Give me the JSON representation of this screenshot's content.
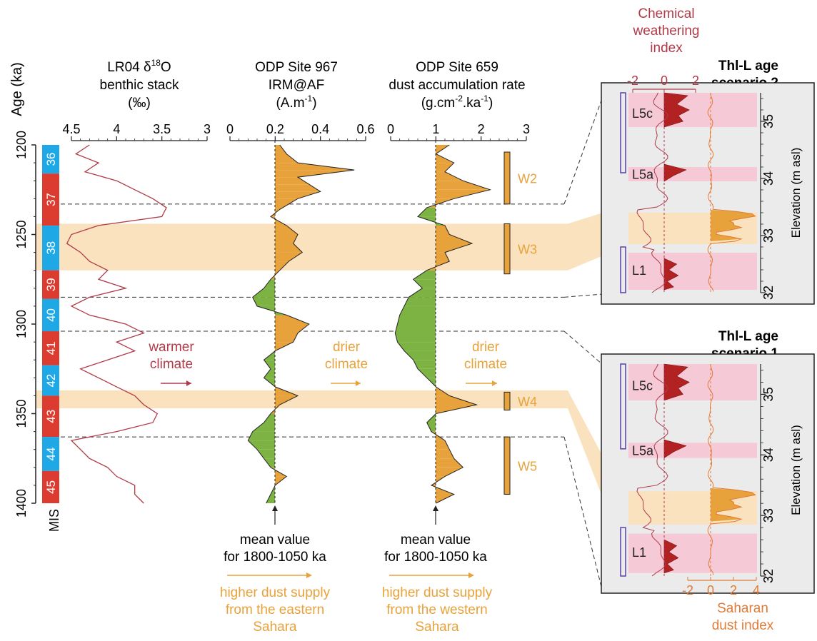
{
  "colors": {
    "red_curve": "#b03a48",
    "orange": "#e8a23c",
    "orange_line": "#e07b39",
    "green": "#7cb342",
    "warm_band": "#fbe2bf",
    "pink_band": "#f5c9d6",
    "dark_red": "#b22222",
    "mis_red": "#dc3b2f",
    "mis_blue": "#1ea8e6",
    "panel_bg": "#ebebeb",
    "purple": "#5b3fa8"
  },
  "left_axis": {
    "label": "Age (ka)",
    "ticks": [
      "1200",
      "1250",
      "1300",
      "1350",
      "1400"
    ],
    "min": 1200,
    "max": 1400
  },
  "mis": {
    "label": "MIS",
    "stages": [
      {
        "n": "36",
        "from": 1200,
        "to": 1216,
        "color": "blue"
      },
      {
        "n": "37",
        "from": 1216,
        "to": 1245,
        "color": "red"
      },
      {
        "n": "38",
        "from": 1245,
        "to": 1270,
        "color": "blue"
      },
      {
        "n": "39",
        "from": 1270,
        "to": 1286,
        "color": "red"
      },
      {
        "n": "40",
        "from": 1286,
        "to": 1304,
        "color": "blue"
      },
      {
        "n": "41",
        "from": 1304,
        "to": 1323,
        "color": "red"
      },
      {
        "n": "42",
        "from": 1323,
        "to": 1340,
        "color": "blue"
      },
      {
        "n": "43",
        "from": 1340,
        "to": 1363,
        "color": "red"
      },
      {
        "n": "44",
        "from": 1363,
        "to": 1382,
        "color": "blue"
      },
      {
        "n": "45",
        "from": 1382,
        "to": 1400,
        "color": "red"
      }
    ]
  },
  "panel_lr04": {
    "title1": "LR04 δ",
    "title_sup": "18",
    "title2": "O",
    "title3": "benthic stack",
    "title4": "(‰)",
    "ticks": [
      "4.5",
      "4",
      "3.5",
      "3"
    ]
  },
  "panel_967": {
    "title1": "ODP Site 967",
    "title2": "IRM@AF",
    "title3a": "(A.m",
    "title3sup": "-1",
    "title3b": ")",
    "ticks": [
      "0",
      "0.2",
      "0.4",
      "0.6"
    ]
  },
  "panel_659": {
    "title1": "ODP Site 659",
    "title2": "dust accumulation rate",
    "title3a": "(g.cm",
    "sup1": "-2",
    "title3b": ".ka",
    "sup2": "-1",
    "title3c": ")",
    "ticks": [
      "0",
      "1",
      "2",
      "3"
    ]
  },
  "wbars": [
    "W2",
    "W3",
    "W4",
    "W5"
  ],
  "annotations": {
    "warmer": [
      "warmer",
      "climate"
    ],
    "drier1": [
      "drier",
      "climate"
    ],
    "drier2": [
      "drier",
      "climate"
    ],
    "mean1": [
      "mean value",
      "for 1800-1050 ka"
    ],
    "mean2": [
      "mean value",
      "for 1800-1050 ka"
    ],
    "higher1": [
      "higher dust supply",
      "from the eastern",
      "Sahara"
    ],
    "higher2": [
      "higher dust supply",
      "from the western",
      "Sahara"
    ]
  },
  "right_panels": {
    "top_axis_title": [
      "Chemical",
      "weathering",
      "index"
    ],
    "top_axis_ticks": [
      "-2",
      "0",
      "2"
    ],
    "bottom_axis_title": [
      "Saharan",
      "dust index"
    ],
    "bottom_axis_ticks": [
      "-2",
      "0",
      "2",
      "4"
    ],
    "elev_label": "Elevation (m asl)",
    "elev_ticks": [
      "35",
      "34",
      "33",
      "32"
    ],
    "scenario2": [
      "Thl-L age",
      "scenario 2"
    ],
    "scenario1": [
      "Thl-L age",
      "scenario 1"
    ],
    "units": [
      "L5c",
      "L5a",
      "L1"
    ]
  },
  "chart_data": {
    "type": "line",
    "y_axis": {
      "label": "Age (ka)",
      "range": [
        1200,
        1400
      ]
    },
    "series": [
      {
        "name": "LR04 δ18O benthic stack",
        "unit": "‰",
        "axis_range": [
          4.5,
          3
        ],
        "points": [
          [
            1200,
            4.3
          ],
          [
            1205,
            4.45
          ],
          [
            1210,
            4.2
          ],
          [
            1215,
            4.35
          ],
          [
            1220,
            4.0
          ],
          [
            1225,
            3.8
          ],
          [
            1230,
            3.6
          ],
          [
            1235,
            3.45
          ],
          [
            1240,
            3.5
          ],
          [
            1245,
            4.2
          ],
          [
            1250,
            4.5
          ],
          [
            1255,
            4.55
          ],
          [
            1260,
            4.4
          ],
          [
            1265,
            4.3
          ],
          [
            1270,
            4.1
          ],
          [
            1275,
            4.2
          ],
          [
            1280,
            3.9
          ],
          [
            1285,
            4.3
          ],
          [
            1290,
            4.5
          ],
          [
            1295,
            4.3
          ],
          [
            1300,
            3.9
          ],
          [
            1305,
            3.7
          ],
          [
            1310,
            4.0
          ],
          [
            1315,
            3.8
          ],
          [
            1320,
            4.1
          ],
          [
            1325,
            4.4
          ],
          [
            1330,
            4.2
          ],
          [
            1335,
            4.0
          ],
          [
            1340,
            3.8
          ],
          [
            1345,
            3.7
          ],
          [
            1350,
            3.55
          ],
          [
            1355,
            3.6
          ],
          [
            1360,
            4.0
          ],
          [
            1365,
            4.5
          ],
          [
            1370,
            4.4
          ],
          [
            1375,
            4.3
          ],
          [
            1380,
            4.1
          ],
          [
            1385,
            4.0
          ],
          [
            1390,
            3.8
          ],
          [
            1395,
            3.8
          ],
          [
            1400,
            3.7
          ]
        ]
      },
      {
        "name": "ODP Site 967 IRM@AF",
        "unit": "A.m-1",
        "mean": 0.2,
        "axis_range": [
          0,
          0.6
        ],
        "points": [
          [
            1200,
            0.22
          ],
          [
            1205,
            0.25
          ],
          [
            1210,
            0.3
          ],
          [
            1214,
            0.55
          ],
          [
            1218,
            0.3
          ],
          [
            1222,
            0.35
          ],
          [
            1226,
            0.4
          ],
          [
            1230,
            0.3
          ],
          [
            1236,
            0.22
          ],
          [
            1240,
            0.18
          ],
          [
            1245,
            0.25
          ],
          [
            1250,
            0.3
          ],
          [
            1255,
            0.28
          ],
          [
            1260,
            0.32
          ],
          [
            1265,
            0.26
          ],
          [
            1270,
            0.22
          ],
          [
            1275,
            0.18
          ],
          [
            1280,
            0.15
          ],
          [
            1285,
            0.1
          ],
          [
            1290,
            0.12
          ],
          [
            1295,
            0.25
          ],
          [
            1300,
            0.35
          ],
          [
            1305,
            0.3
          ],
          [
            1310,
            0.28
          ],
          [
            1315,
            0.2
          ],
          [
            1320,
            0.15
          ],
          [
            1325,
            0.18
          ],
          [
            1330,
            0.15
          ],
          [
            1335,
            0.2
          ],
          [
            1340,
            0.3
          ],
          [
            1345,
            0.22
          ],
          [
            1350,
            0.18
          ],
          [
            1355,
            0.15
          ],
          [
            1360,
            0.1
          ],
          [
            1365,
            0.08
          ],
          [
            1370,
            0.12
          ],
          [
            1375,
            0.15
          ],
          [
            1380,
            0.18
          ],
          [
            1385,
            0.25
          ],
          [
            1390,
            0.2
          ],
          [
            1395,
            0.18
          ],
          [
            1400,
            0.16
          ]
        ]
      },
      {
        "name": "ODP Site 659 dust accumulation rate",
        "unit": "g.cm-2.ka-1",
        "mean": 1.0,
        "axis_range": [
          0,
          3
        ],
        "points": [
          [
            1200,
            1.3
          ],
          [
            1205,
            1.0
          ],
          [
            1210,
            1.4
          ],
          [
            1215,
            1.2
          ],
          [
            1220,
            1.6
          ],
          [
            1225,
            2.2
          ],
          [
            1230,
            1.4
          ],
          [
            1235,
            0.8
          ],
          [
            1240,
            0.6
          ],
          [
            1245,
            1.2
          ],
          [
            1250,
            1.3
          ],
          [
            1255,
            1.8
          ],
          [
            1260,
            1.2
          ],
          [
            1265,
            1.3
          ],
          [
            1270,
            0.8
          ],
          [
            1275,
            0.5
          ],
          [
            1280,
            0.7
          ],
          [
            1285,
            0.4
          ],
          [
            1290,
            0.3
          ],
          [
            1295,
            0.2
          ],
          [
            1300,
            0.15
          ],
          [
            1305,
            0.1
          ],
          [
            1310,
            0.15
          ],
          [
            1315,
            0.3
          ],
          [
            1320,
            0.5
          ],
          [
            1325,
            0.6
          ],
          [
            1330,
            0.8
          ],
          [
            1335,
            1.0
          ],
          [
            1340,
            1.3
          ],
          [
            1345,
            1.9
          ],
          [
            1350,
            1.0
          ],
          [
            1355,
            0.8
          ],
          [
            1360,
            0.9
          ],
          [
            1365,
            1.2
          ],
          [
            1370,
            1.3
          ],
          [
            1375,
            1.4
          ],
          [
            1380,
            1.6
          ],
          [
            1385,
            1.2
          ],
          [
            1390,
            0.9
          ],
          [
            1395,
            1.4
          ],
          [
            1400,
            1.0
          ]
        ]
      }
    ],
    "intervals": [
      {
        "name": "W2",
        "from": 1204,
        "to": 1233
      },
      {
        "name": "W3",
        "from": 1244,
        "to": 1272
      },
      {
        "name": "W4",
        "from": 1338,
        "to": 1348
      },
      {
        "name": "W5",
        "from": 1363,
        "to": 1395
      }
    ]
  }
}
